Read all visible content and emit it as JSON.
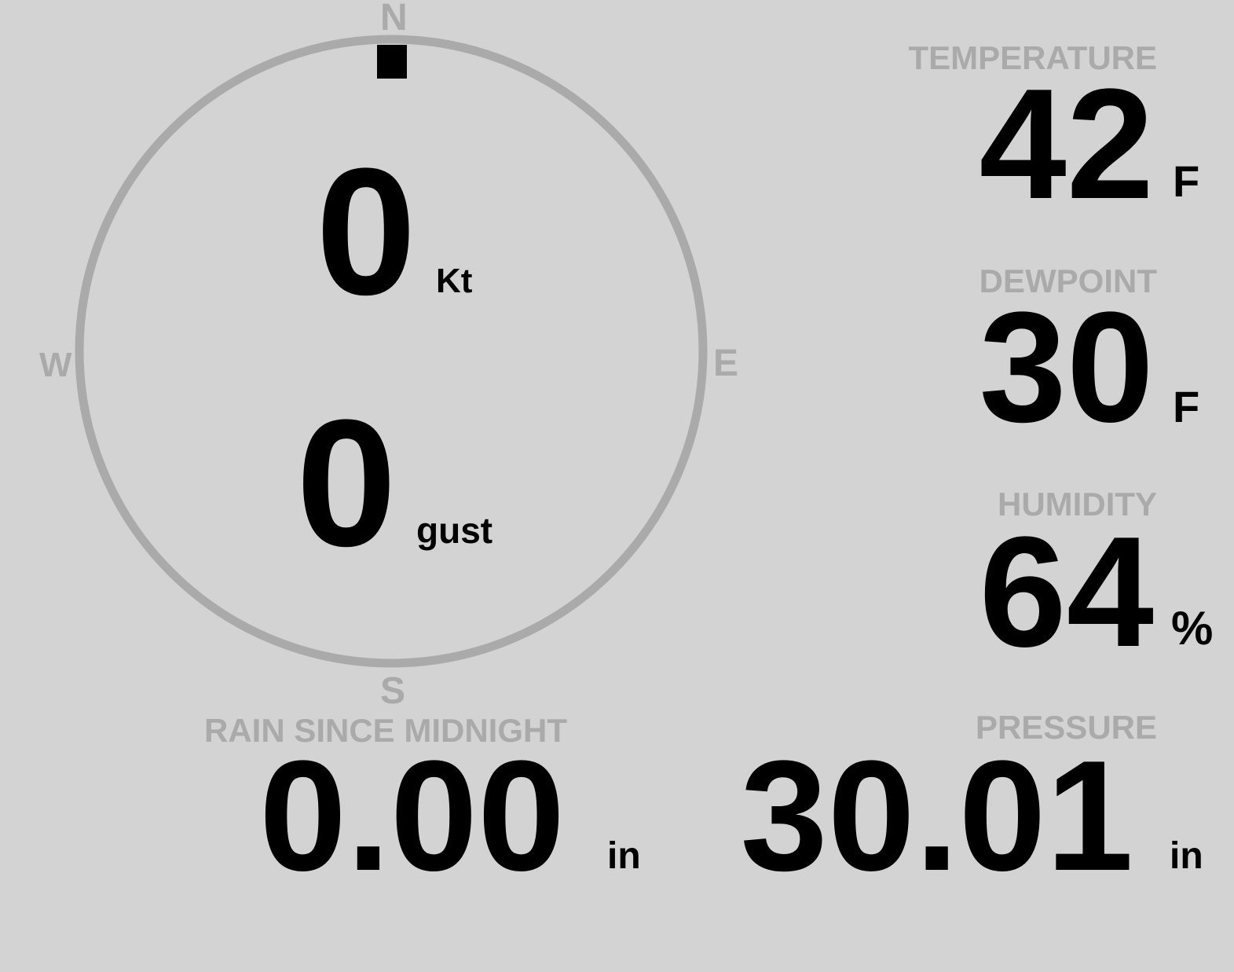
{
  "colors": {
    "background": "#d3d3d3",
    "label": "#aaaaaa",
    "value": "#000000",
    "dial": "#aaaaaa",
    "needle": "#000000"
  },
  "wind": {
    "compass": {
      "north": "N",
      "east": "E",
      "south": "S",
      "west": "W"
    },
    "direction_deg": 0,
    "speed": "0",
    "speed_unit": "Kt",
    "gust": "0",
    "gust_unit": "gust"
  },
  "temperature": {
    "label": "TEMPERATURE",
    "value": "42",
    "unit": "F"
  },
  "dewpoint": {
    "label": "DEWPOINT",
    "value": "30",
    "unit": "F"
  },
  "humidity": {
    "label": "HUMIDITY",
    "value": "64",
    "unit": "%"
  },
  "rain": {
    "label": "RAIN SINCE MIDNIGHT",
    "value": "0.00",
    "unit": "in"
  },
  "pressure": {
    "label": "PRESSURE",
    "value": "30.01",
    "unit": "in"
  }
}
